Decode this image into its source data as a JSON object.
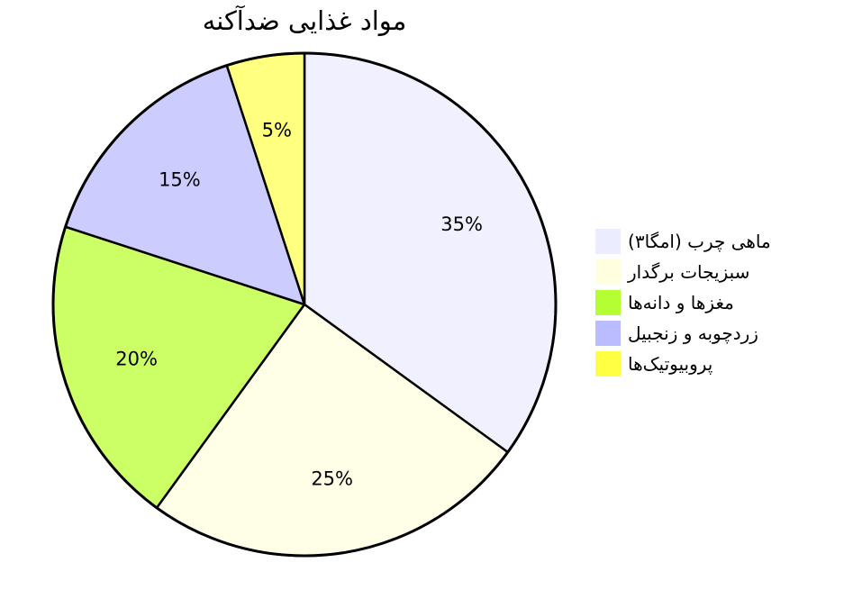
{
  "chart_data": {
    "type": "pie",
    "title": "مواد غذایی ضدآکنه",
    "legend_position": "right",
    "start_angle_deg": -90,
    "direction": "clockwise",
    "categories": [
      "ماهی چرب (امگا۳)",
      "سبزیجات برگدار",
      "مغزها و دانه‌ها",
      "زردچوبه و زنجبیل",
      "پروبیوتیک‌ها"
    ],
    "values": [
      35,
      25,
      20,
      15,
      5
    ],
    "value_labels": [
      "35%",
      "25%",
      "20%",
      "15%",
      "5%"
    ],
    "slice_colors": [
      "#f0f0ff",
      "#ffffe8",
      "#ccff66",
      "#ccccff",
      "#ffff80"
    ],
    "legend_colors": [
      "#ececff",
      "#ffffe0",
      "#b3ff33",
      "#bbbbff",
      "#ffff44"
    ]
  }
}
